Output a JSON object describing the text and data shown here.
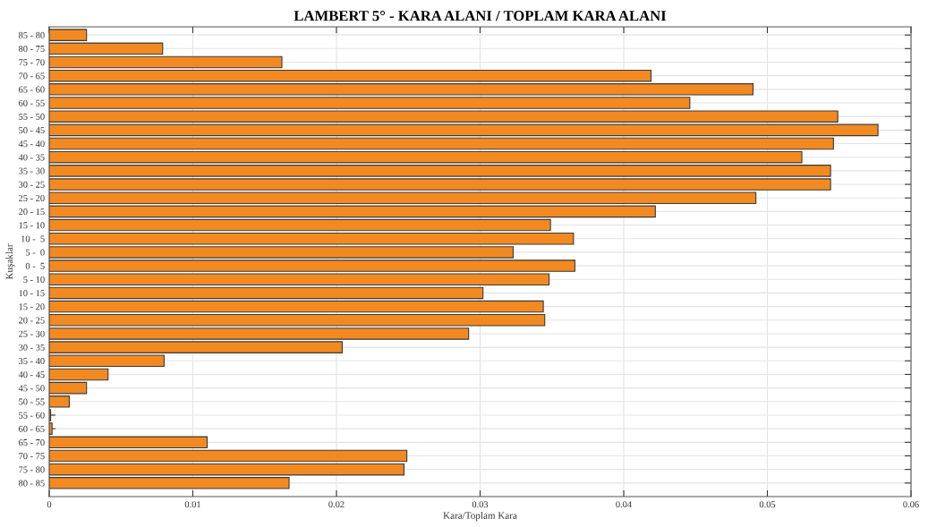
{
  "chart_data": {
    "type": "bar",
    "orientation": "horizontal",
    "title": "LAMBERT 5° - KARA ALANI / TOPLAM KARA ALANI",
    "xlabel": "Kara/Toplam Kara",
    "ylabel": "Kuşaklar",
    "categories": [
      "85 - 80",
      "80 - 75",
      "75 - 70",
      "70 - 65",
      "65 - 60",
      "60 - 55",
      "55 - 50",
      "50 - 45",
      "45 - 40",
      "40 - 35",
      "35 - 30",
      "30 - 25",
      "25 - 20",
      "20 - 15",
      "15 - 10",
      "10 -  5",
      "5 -  0",
      "0 -  5",
      "5 - 10",
      "10 - 15",
      "15 - 20",
      "20 - 25",
      "25 - 30",
      "30 - 35",
      "35 - 40",
      "40 - 45",
      "45 - 50",
      "50 - 55",
      "55 - 60",
      "60 - 65",
      "65 - 70",
      "70 - 75",
      "75 - 80",
      "80 - 85"
    ],
    "values": [
      0.0026,
      0.0079,
      0.0162,
      0.0419,
      0.049,
      0.0446,
      0.0549,
      0.0577,
      0.0546,
      0.0524,
      0.0544,
      0.0544,
      0.0492,
      0.0422,
      0.0349,
      0.0365,
      0.0323,
      0.0366,
      0.0348,
      0.0302,
      0.0344,
      0.0345,
      0.0292,
      0.0204,
      0.008,
      0.0041,
      0.0026,
      0.0014,
      0.0001,
      0.0002,
      0.011,
      0.0249,
      0.0247,
      0.0167
    ],
    "color": "#f28a21",
    "xlim": [
      0,
      0.06
    ],
    "xticks": [
      0,
      0.01,
      0.02,
      0.03,
      0.04,
      0.05,
      0.06
    ],
    "grid": true,
    "legend": false
  }
}
